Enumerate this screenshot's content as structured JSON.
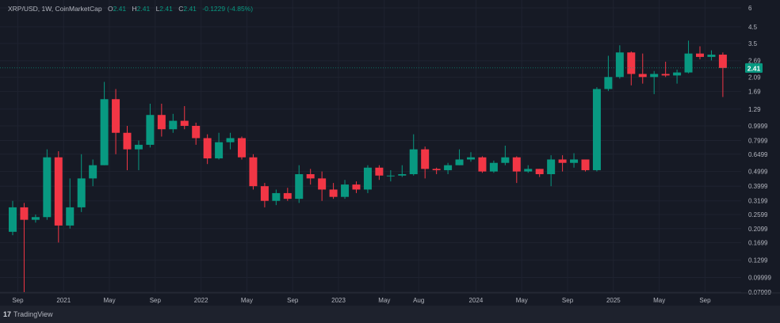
{
  "header": {
    "symbol": "XRP/USD, 1W, CoinMarketCap",
    "open_label": "O",
    "open": "2.41",
    "high_label": "H",
    "high": "2.41",
    "low_label": "L",
    "low": "2.41",
    "close_label": "C",
    "close": "2.41",
    "change": "-0.1229 (-4.85%)"
  },
  "footer": {
    "brand": "TradingView",
    "logo_glyph": "17"
  },
  "colors": {
    "background": "#161a25",
    "up": "#089981",
    "down": "#f23645",
    "price_badge": "#089981"
  },
  "chart_data": {
    "type": "candlestick",
    "y_scale": "log",
    "ylim": [
      0.07999,
      6
    ],
    "grid": true,
    "current_price": 2.41,
    "current_price_label": "2.41",
    "y_ticks": [
      "6",
      "4.5",
      "3.5",
      "2.69",
      "2.09",
      "1.69",
      "1.29",
      "0.9999",
      "0.7999",
      "0.6499",
      "0.4999",
      "0.3999",
      "0.3199",
      "0.2599",
      "0.2099",
      "0.1699",
      "0.1299",
      "0.09999",
      "0.07999"
    ],
    "x_ticks": [
      {
        "label": "Sep",
        "date": "2020-09"
      },
      {
        "label": "2021",
        "date": "2021-01"
      },
      {
        "label": "May",
        "date": "2021-05"
      },
      {
        "label": "Sep",
        "date": "2021-09"
      },
      {
        "label": "2022",
        "date": "2022-01"
      },
      {
        "label": "May",
        "date": "2022-05"
      },
      {
        "label": "Sep",
        "date": "2022-09"
      },
      {
        "label": "2023",
        "date": "2023-01"
      },
      {
        "label": "May",
        "date": "2023-05"
      },
      {
        "label": "Aug",
        "date": "2023-08"
      },
      {
        "label": "2024",
        "date": "2024-01"
      },
      {
        "label": "May",
        "date": "2024-05"
      },
      {
        "label": "Sep",
        "date": "2024-09"
      },
      {
        "label": "2025",
        "date": "2025-01"
      },
      {
        "label": "May",
        "date": "2025-05"
      },
      {
        "label": "Sep",
        "date": "2025-09"
      }
    ],
    "candles": [
      [
        "2020-08",
        0.2,
        0.32,
        0.19,
        0.29
      ],
      [
        "2020-09",
        0.29,
        0.31,
        0.08,
        0.24
      ],
      [
        "2020-10",
        0.24,
        0.26,
        0.23,
        0.25
      ],
      [
        "2020-11",
        0.25,
        0.7,
        0.24,
        0.62
      ],
      [
        "2020-12",
        0.62,
        0.68,
        0.17,
        0.22
      ],
      [
        "2021-01",
        0.22,
        0.45,
        0.21,
        0.29
      ],
      [
        "2021-02",
        0.29,
        0.65,
        0.27,
        0.45
      ],
      [
        "2021-03",
        0.45,
        0.6,
        0.4,
        0.55
      ],
      [
        "2021-04",
        0.55,
        1.95,
        0.55,
        1.5
      ],
      [
        "2021-05",
        1.5,
        1.75,
        0.65,
        0.9
      ],
      [
        "2021-06",
        0.9,
        1.0,
        0.51,
        0.7
      ],
      [
        "2021-07",
        0.7,
        0.8,
        0.51,
        0.75
      ],
      [
        "2021-08",
        0.75,
        1.4,
        0.72,
        1.18
      ],
      [
        "2021-09",
        1.18,
        1.4,
        0.85,
        0.95
      ],
      [
        "2021-10",
        0.95,
        1.2,
        0.9,
        1.08
      ],
      [
        "2021-11",
        1.08,
        1.35,
        0.95,
        1.0
      ],
      [
        "2021-12",
        1.0,
        1.05,
        0.75,
        0.83
      ],
      [
        "2022-01",
        0.83,
        0.88,
        0.56,
        0.61
      ],
      [
        "2022-02",
        0.61,
        0.9,
        0.6,
        0.78
      ],
      [
        "2022-03",
        0.78,
        0.9,
        0.7,
        0.83
      ],
      [
        "2022-04",
        0.83,
        0.85,
        0.6,
        0.62
      ],
      [
        "2022-05",
        0.62,
        0.65,
        0.38,
        0.4
      ],
      [
        "2022-06",
        0.4,
        0.42,
        0.29,
        0.32
      ],
      [
        "2022-07",
        0.32,
        0.38,
        0.3,
        0.36
      ],
      [
        "2022-08",
        0.36,
        0.39,
        0.32,
        0.33
      ],
      [
        "2022-09",
        0.33,
        0.55,
        0.31,
        0.48
      ],
      [
        "2022-10",
        0.48,
        0.52,
        0.41,
        0.45
      ],
      [
        "2022-11",
        0.45,
        0.5,
        0.32,
        0.38
      ],
      [
        "2022-12",
        0.38,
        0.42,
        0.33,
        0.34
      ],
      [
        "2023-01",
        0.34,
        0.44,
        0.33,
        0.41
      ],
      [
        "2023-02",
        0.41,
        0.43,
        0.36,
        0.38
      ],
      [
        "2023-03",
        0.38,
        0.55,
        0.36,
        0.53
      ],
      [
        "2023-04",
        0.53,
        0.55,
        0.44,
        0.47
      ],
      [
        "2023-05",
        0.47,
        0.51,
        0.43,
        0.47
      ],
      [
        "2023-06",
        0.47,
        0.55,
        0.46,
        0.48
      ],
      [
        "2023-07",
        0.48,
        0.88,
        0.47,
        0.7
      ],
      [
        "2023-08",
        0.7,
        0.73,
        0.45,
        0.52
      ],
      [
        "2023-09",
        0.52,
        0.53,
        0.48,
        0.51
      ],
      [
        "2023-10",
        0.51,
        0.57,
        0.48,
        0.55
      ],
      [
        "2023-11",
        0.55,
        0.7,
        0.55,
        0.6
      ],
      [
        "2023-12",
        0.6,
        0.67,
        0.58,
        0.62
      ],
      [
        "2024-01",
        0.62,
        0.63,
        0.49,
        0.5
      ],
      [
        "2024-02",
        0.5,
        0.59,
        0.49,
        0.57
      ],
      [
        "2024-03",
        0.57,
        0.74,
        0.55,
        0.62
      ],
      [
        "2024-04",
        0.62,
        0.63,
        0.42,
        0.5
      ],
      [
        "2024-05",
        0.5,
        0.55,
        0.49,
        0.52
      ],
      [
        "2024-06",
        0.52,
        0.52,
        0.46,
        0.48
      ],
      [
        "2024-07",
        0.48,
        0.64,
        0.4,
        0.6
      ],
      [
        "2024-08",
        0.6,
        0.64,
        0.5,
        0.57
      ],
      [
        "2024-09",
        0.57,
        0.66,
        0.53,
        0.6
      ],
      [
        "2024-10",
        0.6,
        0.6,
        0.5,
        0.51
      ],
      [
        "2024-11",
        0.51,
        1.8,
        0.5,
        1.75
      ],
      [
        "2024-12",
        1.75,
        2.9,
        1.7,
        2.1
      ],
      [
        "2025-01",
        2.1,
        3.4,
        2.05,
        3.05
      ],
      [
        "2025-02",
        3.05,
        3.1,
        1.85,
        2.2
      ],
      [
        "2025-03",
        2.2,
        3.0,
        1.9,
        2.1
      ],
      [
        "2025-04",
        2.1,
        2.3,
        1.62,
        2.2
      ],
      [
        "2025-05",
        2.2,
        2.65,
        2.1,
        2.15
      ],
      [
        "2025-06",
        2.15,
        2.35,
        1.9,
        2.25
      ],
      [
        "2025-07",
        2.25,
        3.65,
        2.22,
        3.0
      ],
      [
        "2025-08",
        3.0,
        3.35,
        2.75,
        2.85
      ],
      [
        "2025-09",
        2.85,
        3.15,
        2.7,
        2.95
      ],
      [
        "2025-10",
        2.95,
        3.05,
        1.55,
        2.41
      ]
    ]
  }
}
